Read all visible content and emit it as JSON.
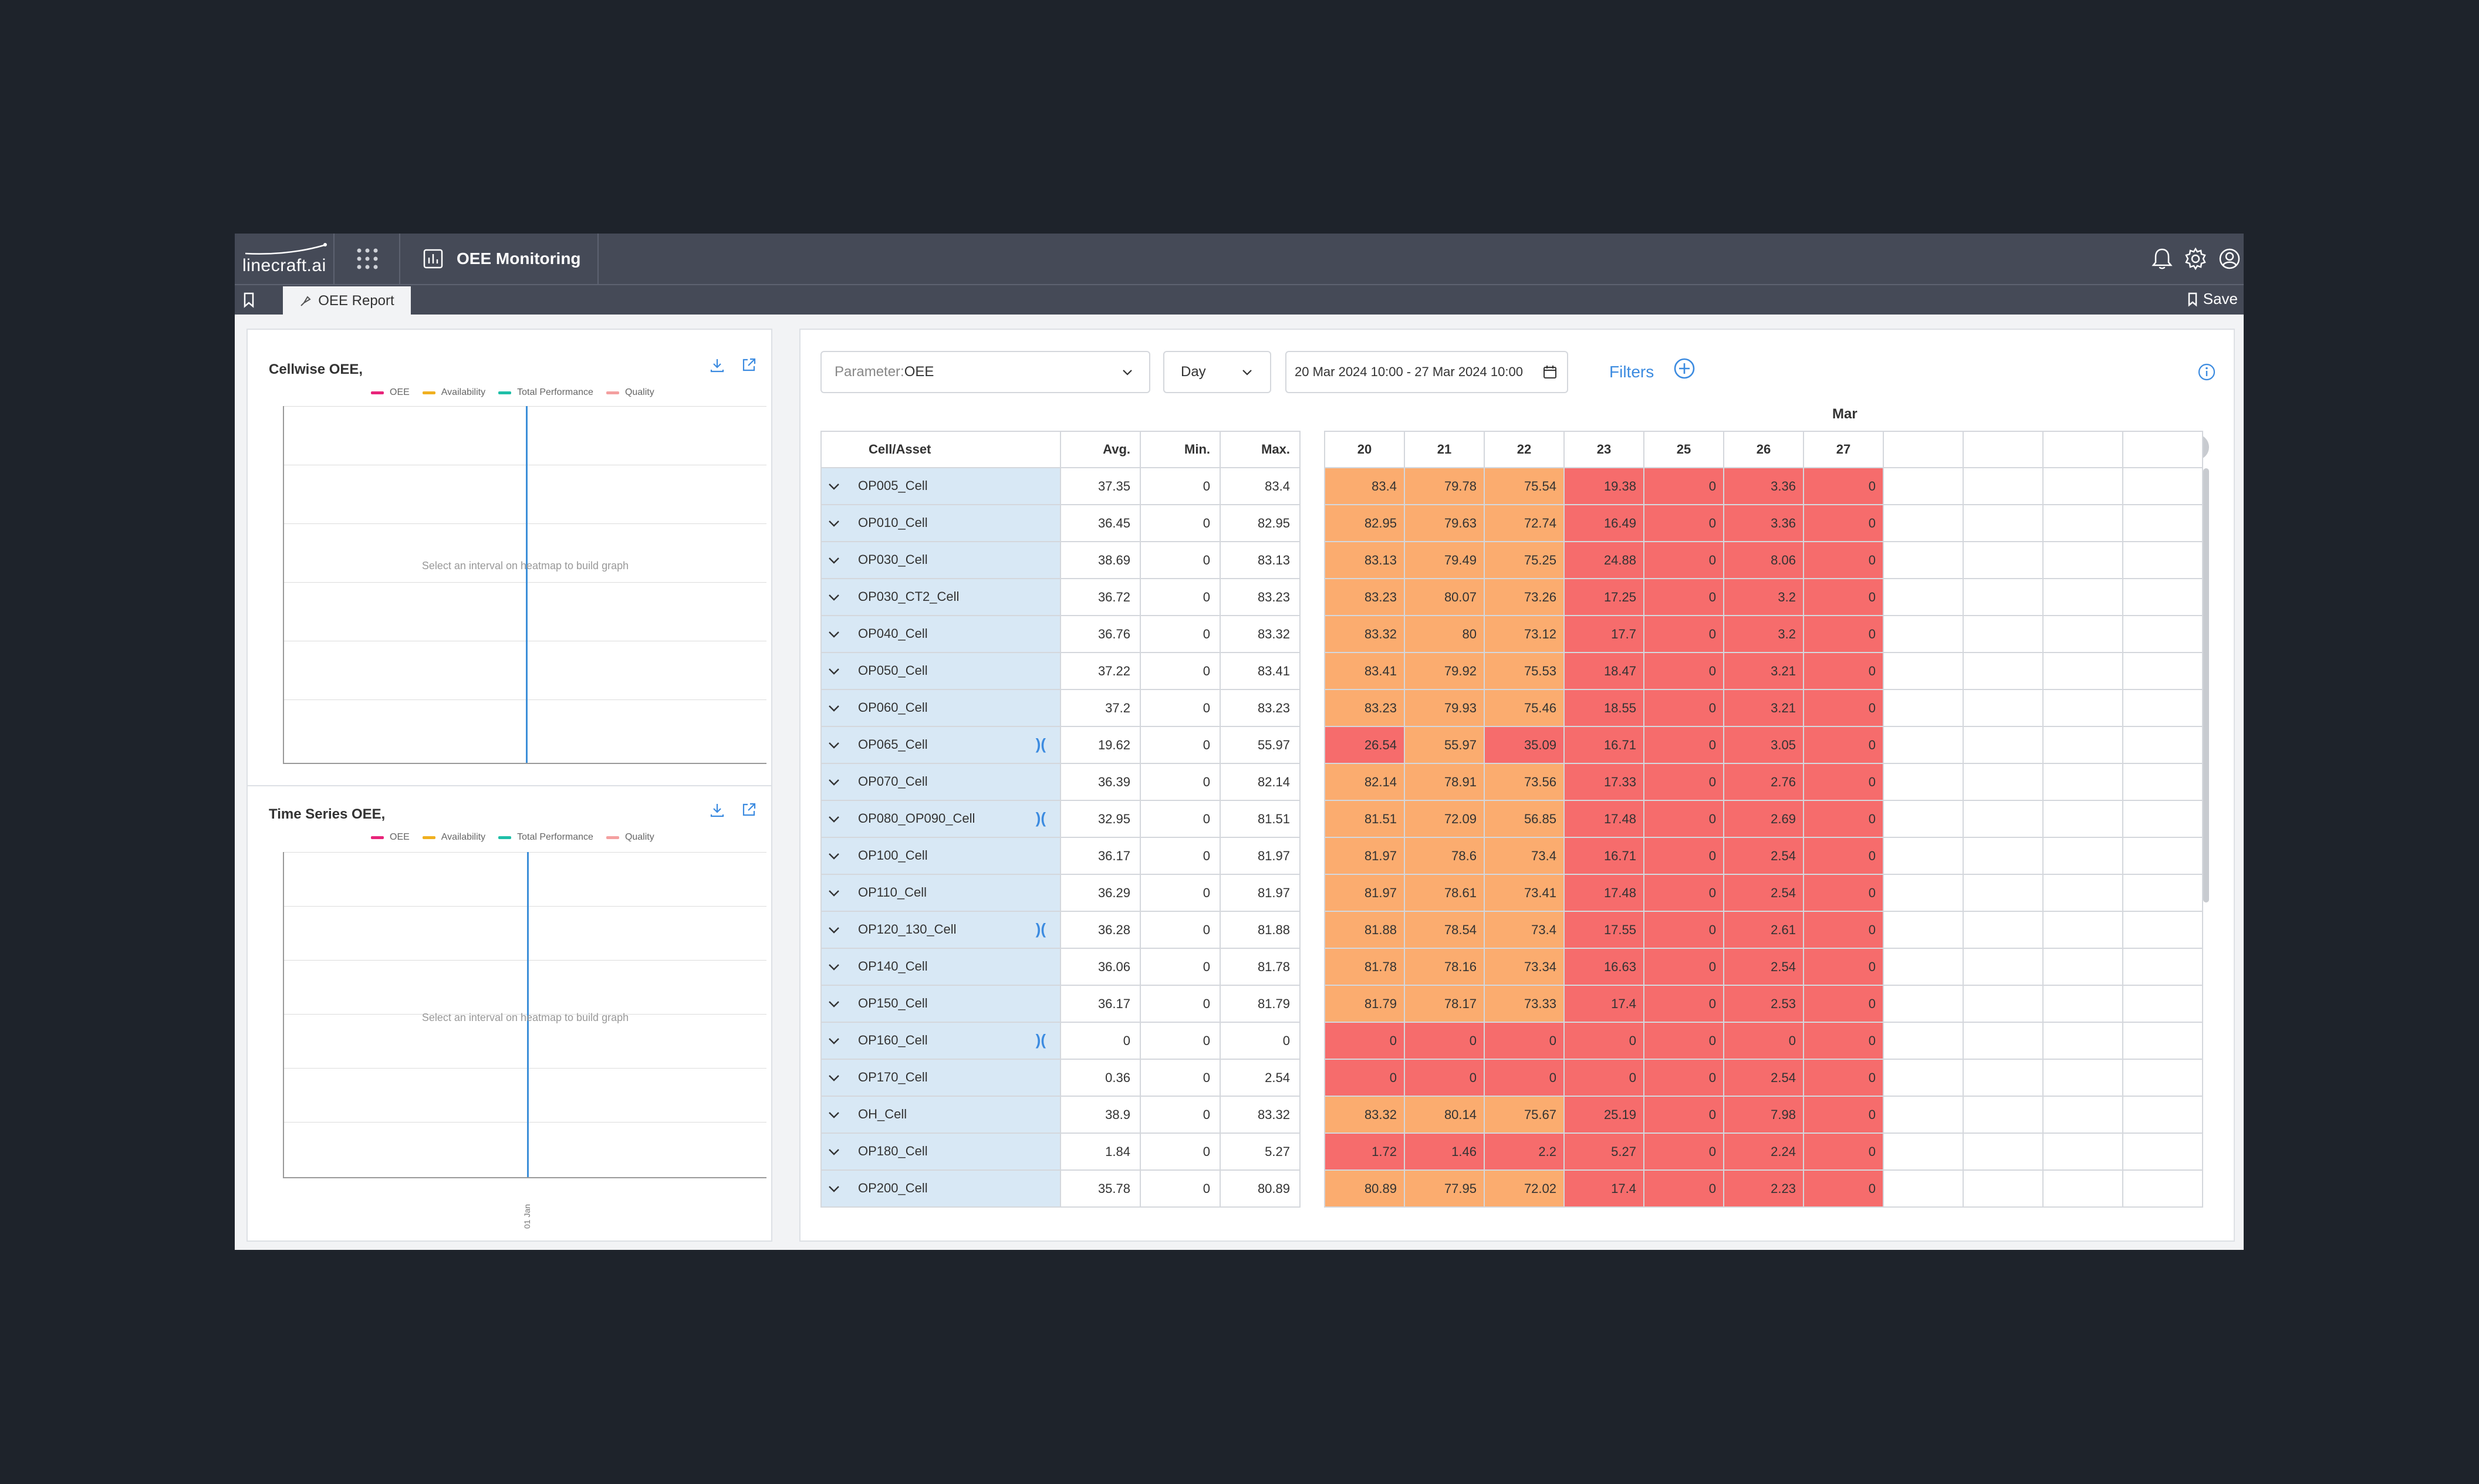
{
  "app": {
    "logo": "linecraft.ai",
    "module_title": "OEE Monitoring"
  },
  "tabs": {
    "active": "OEE Report",
    "save_label": "Save"
  },
  "cellwise_panel": {
    "title": "Cellwise OEE,",
    "placeholder": "Select an interval on heatmap to build graph",
    "legend": [
      "OEE",
      "Availability",
      "Total Performance",
      "Quality"
    ]
  },
  "timeseries_panel": {
    "title": "Time Series OEE,",
    "placeholder": "Select an interval on heatmap to build graph",
    "legend": [
      "OEE",
      "Availability",
      "Total Performance",
      "Quality"
    ],
    "x_tick": "01 Jan"
  },
  "legend_colors": [
    "#e8247a",
    "#f0b020",
    "#1fbfa8",
    "#f4a0a0"
  ],
  "controls": {
    "parameter_label": "Parameter:",
    "parameter_value": "OEE",
    "granularity": "Day",
    "date_range": "20 Mar 2024 10:00 - 27 Mar 2024 10:00",
    "filters_label": "Filters"
  },
  "table": {
    "month": "Mar",
    "headers": {
      "asset": "Cell/Asset",
      "avg": "Avg.",
      "min": "Min.",
      "max": "Max."
    },
    "days": [
      "20",
      "21",
      "22",
      "23",
      "25",
      "26",
      "27",
      "",
      "",
      "",
      ""
    ],
    "rows": [
      {
        "name": "OP005_Cell",
        "avg": "37.35",
        "min": "0",
        "max": "83.4",
        "bracket": false,
        "vals": [
          "83.4",
          "79.78",
          "75.54",
          "19.38",
          "0",
          "3.36",
          "0"
        ]
      },
      {
        "name": "OP010_Cell",
        "avg": "36.45",
        "min": "0",
        "max": "82.95",
        "bracket": false,
        "vals": [
          "82.95",
          "79.63",
          "72.74",
          "16.49",
          "0",
          "3.36",
          "0"
        ]
      },
      {
        "name": "OP030_Cell",
        "avg": "38.69",
        "min": "0",
        "max": "83.13",
        "bracket": false,
        "vals": [
          "83.13",
          "79.49",
          "75.25",
          "24.88",
          "0",
          "8.06",
          "0"
        ]
      },
      {
        "name": "OP030_CT2_Cell",
        "avg": "36.72",
        "min": "0",
        "max": "83.23",
        "bracket": false,
        "vals": [
          "83.23",
          "80.07",
          "73.26",
          "17.25",
          "0",
          "3.2",
          "0"
        ]
      },
      {
        "name": "OP040_Cell",
        "avg": "36.76",
        "min": "0",
        "max": "83.32",
        "bracket": false,
        "vals": [
          "83.32",
          "80",
          "73.12",
          "17.7",
          "0",
          "3.2",
          "0"
        ]
      },
      {
        "name": "OP050_Cell",
        "avg": "37.22",
        "min": "0",
        "max": "83.41",
        "bracket": false,
        "vals": [
          "83.41",
          "79.92",
          "75.53",
          "18.47",
          "0",
          "3.21",
          "0"
        ]
      },
      {
        "name": "OP060_Cell",
        "avg": "37.2",
        "min": "0",
        "max": "83.23",
        "bracket": false,
        "vals": [
          "83.23",
          "79.93",
          "75.46",
          "18.55",
          "0",
          "3.21",
          "0"
        ]
      },
      {
        "name": "OP065_Cell",
        "avg": "19.62",
        "min": "0",
        "max": "55.97",
        "bracket": true,
        "vals": [
          "26.54",
          "55.97",
          "35.09",
          "16.71",
          "0",
          "3.05",
          "0"
        ]
      },
      {
        "name": "OP070_Cell",
        "avg": "36.39",
        "min": "0",
        "max": "82.14",
        "bracket": false,
        "vals": [
          "82.14",
          "78.91",
          "73.56",
          "17.33",
          "0",
          "2.76",
          "0"
        ]
      },
      {
        "name": "OP080_OP090_Cell",
        "avg": "32.95",
        "min": "0",
        "max": "81.51",
        "bracket": true,
        "vals": [
          "81.51",
          "72.09",
          "56.85",
          "17.48",
          "0",
          "2.69",
          "0"
        ]
      },
      {
        "name": "OP100_Cell",
        "avg": "36.17",
        "min": "0",
        "max": "81.97",
        "bracket": false,
        "vals": [
          "81.97",
          "78.6",
          "73.4",
          "16.71",
          "0",
          "2.54",
          "0"
        ]
      },
      {
        "name": "OP110_Cell",
        "avg": "36.29",
        "min": "0",
        "max": "81.97",
        "bracket": false,
        "vals": [
          "81.97",
          "78.61",
          "73.41",
          "17.48",
          "0",
          "2.54",
          "0"
        ]
      },
      {
        "name": "OP120_130_Cell",
        "avg": "36.28",
        "min": "0",
        "max": "81.88",
        "bracket": true,
        "vals": [
          "81.88",
          "78.54",
          "73.4",
          "17.55",
          "0",
          "2.61",
          "0"
        ]
      },
      {
        "name": "OP140_Cell",
        "avg": "36.06",
        "min": "0",
        "max": "81.78",
        "bracket": false,
        "vals": [
          "81.78",
          "78.16",
          "73.34",
          "16.63",
          "0",
          "2.54",
          "0"
        ]
      },
      {
        "name": "OP150_Cell",
        "avg": "36.17",
        "min": "0",
        "max": "81.79",
        "bracket": false,
        "vals": [
          "81.79",
          "78.17",
          "73.33",
          "17.4",
          "0",
          "2.53",
          "0"
        ]
      },
      {
        "name": "OP160_Cell",
        "avg": "0",
        "min": "0",
        "max": "0",
        "bracket": true,
        "vals": [
          "0",
          "0",
          "0",
          "0",
          "0",
          "0",
          "0"
        ]
      },
      {
        "name": "OP170_Cell",
        "avg": "0.36",
        "min": "0",
        "max": "2.54",
        "bracket": false,
        "vals": [
          "0",
          "0",
          "0",
          "0",
          "0",
          "2.54",
          "0"
        ]
      },
      {
        "name": "OH_Cell",
        "avg": "38.9",
        "min": "0",
        "max": "83.32",
        "bracket": false,
        "vals": [
          "83.32",
          "80.14",
          "75.67",
          "25.19",
          "0",
          "7.98",
          "0"
        ]
      },
      {
        "name": "OP180_Cell",
        "avg": "1.84",
        "min": "0",
        "max": "5.27",
        "bracket": false,
        "vals": [
          "1.72",
          "1.46",
          "2.2",
          "5.27",
          "0",
          "2.24",
          "0"
        ]
      },
      {
        "name": "OP200_Cell",
        "avg": "35.78",
        "min": "0",
        "max": "80.89",
        "bracket": false,
        "vals": [
          "80.89",
          "77.95",
          "72.02",
          "17.4",
          "0",
          "2.23",
          "0"
        ]
      }
    ]
  },
  "heat_colors": {
    "high": "#fbac6f",
    "low": "#f66c6c"
  },
  "icons": [
    "grid-apps-icon",
    "bar-chart-icon",
    "bell-icon",
    "gear-icon",
    "user-icon",
    "bookmark-icon",
    "download-icon",
    "external-link-icon",
    "chevron-down-icon",
    "calendar-icon",
    "add-circle-icon",
    "info-icon",
    "bracket-icon"
  ]
}
